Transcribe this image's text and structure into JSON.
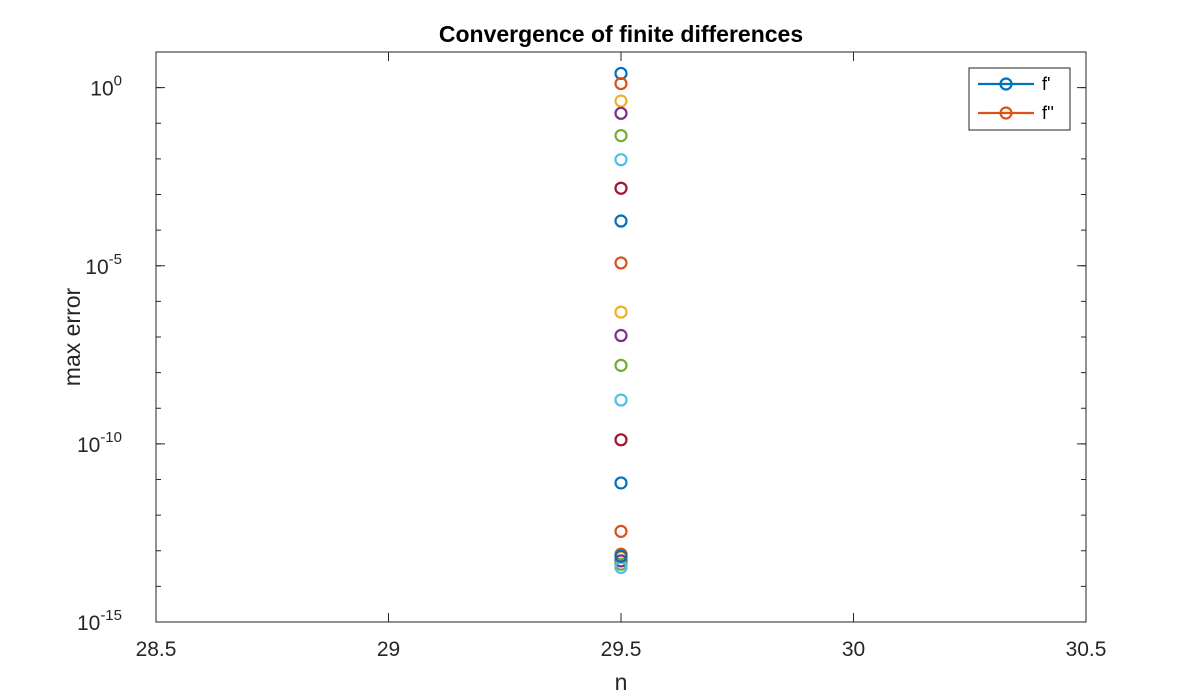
{
  "chart_data": {
    "type": "scatter",
    "title": "Convergence of finite differences",
    "xlabel": "n",
    "ylabel": "max error",
    "xlim": [
      28.5,
      30.5
    ],
    "ylim": [
      1e-15,
      10
    ],
    "yscale": "log",
    "grid": false,
    "legend_position": "top-right",
    "x_ticks": [
      "28.5",
      "29",
      "29.5",
      "30",
      "30.5"
    ],
    "y_ticks": [
      {
        "base": "10",
        "exp": "0",
        "value": 1
      },
      {
        "base": "10",
        "exp": "-5",
        "value": 1e-05
      },
      {
        "base": "10",
        "exp": "-10",
        "value": 1e-10
      },
      {
        "base": "10",
        "exp": "-15",
        "value": 1e-15
      }
    ],
    "legend": [
      {
        "label": "f'",
        "color": "#0072BD"
      },
      {
        "label": "f''",
        "color": "#D95319"
      }
    ],
    "points": [
      {
        "x": 29.5,
        "y": 2.5,
        "color": "#0072BD"
      },
      {
        "x": 29.5,
        "y": 1.3,
        "color": "#D95319"
      },
      {
        "x": 29.5,
        "y": 0.42,
        "color": "#EDB120"
      },
      {
        "x": 29.5,
        "y": 0.19,
        "color": "#7E2F8E"
      },
      {
        "x": 29.5,
        "y": 0.045,
        "color": "#77AC30"
      },
      {
        "x": 29.5,
        "y": 0.0095,
        "color": "#4DBEEE"
      },
      {
        "x": 29.5,
        "y": 0.0015,
        "color": "#A2142F"
      },
      {
        "x": 29.5,
        "y": 0.00018,
        "color": "#0072BD"
      },
      {
        "x": 29.5,
        "y": 1.2e-05,
        "color": "#D95319"
      },
      {
        "x": 29.5,
        "y": 5e-07,
        "color": "#EDB120"
      },
      {
        "x": 29.5,
        "y": 1.1e-07,
        "color": "#7E2F8E"
      },
      {
        "x": 29.5,
        "y": 1.6e-08,
        "color": "#77AC30"
      },
      {
        "x": 29.5,
        "y": 1.7e-09,
        "color": "#4DBEEE"
      },
      {
        "x": 29.5,
        "y": 1.3e-10,
        "color": "#A2142F"
      },
      {
        "x": 29.5,
        "y": 8e-12,
        "color": "#0072BD"
      },
      {
        "x": 29.5,
        "y": 3.5e-13,
        "color": "#D95319"
      },
      {
        "x": 29.5,
        "y": 8e-14,
        "color": "#D95319"
      },
      {
        "x": 29.5,
        "y": 6.5e-14,
        "color": "#EDB120"
      },
      {
        "x": 29.5,
        "y": 5.2e-14,
        "color": "#7E2F8E"
      },
      {
        "x": 29.5,
        "y": 4.2e-14,
        "color": "#77AC30"
      },
      {
        "x": 29.5,
        "y": 3.4e-14,
        "color": "#4DBEEE"
      },
      {
        "x": 29.5,
        "y": 7e-14,
        "color": "#0072BD"
      }
    ]
  }
}
